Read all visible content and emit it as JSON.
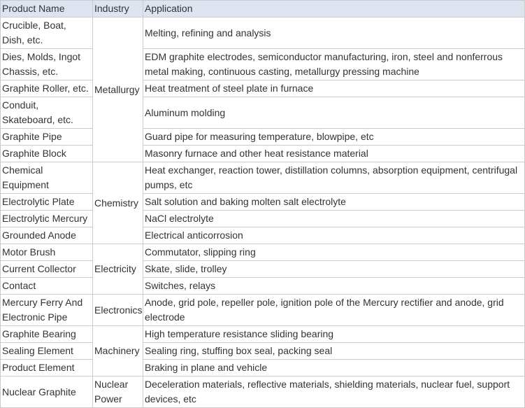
{
  "table": {
    "headers": [
      "Product Name",
      "Industry",
      "Application"
    ],
    "groups": [
      {
        "industry": "Metallurgy",
        "rows": [
          {
            "product": "Crucible, Boat, Dish, etc.",
            "application": "Melting, refining and analysis",
            "lines": 2
          },
          {
            "product": "Dies, Molds, Ingot Chassis, etc.",
            "application": "EDM graphite electrodes, semiconductor manufacturing, iron, steel and nonferrous metal making, continuous casting, metallurgy pressing machine",
            "lines": 2
          },
          {
            "product": "Graphite Roller, etc.",
            "application": "Heat treatment of steel plate in furnace",
            "lines": 1
          },
          {
            "product": "Conduit, Skateboard, etc.",
            "application": "Aluminum molding",
            "lines": 2
          },
          {
            "product": "Graphite Pipe",
            "application": "Guard pipe for measuring temperature, blowpipe, etc",
            "lines": 1
          },
          {
            "product": "Graphite Block",
            "application": "Masonry furnace and other heat resistance material",
            "lines": 1
          }
        ]
      },
      {
        "industry": "Chemistry",
        "rows": [
          {
            "product": "Chemical Equipment",
            "application": "Heat exchanger, reaction tower, distillation columns, absorption equipment, centrifugal pumps, etc",
            "lines": 2
          },
          {
            "product": "Electrolytic Plate",
            "application": "Salt solution and baking molten salt electrolyte",
            "lines": 1
          },
          {
            "product": "Electrolytic Mercury",
            "application": "NaCl electrolyte",
            "lines": 1
          },
          {
            "product": "Grounded Anode",
            "application": "Electrical anticorrosion",
            "lines": 1
          }
        ]
      },
      {
        "industry": "Electricity",
        "rows": [
          {
            "product": "Motor Brush",
            "application": "Commutator, slipping ring",
            "lines": 1
          },
          {
            "product": "Current Collector",
            "application": "Skate, slide, trolley",
            "lines": 1
          },
          {
            "product": "Contact",
            "application": "Switches, relays",
            "lines": 1
          }
        ]
      },
      {
        "industry": "Electronics",
        "rows": [
          {
            "product": "Mercury Ferry And Electronic Pipe",
            "application": "Anode, grid pole, repeller  pole, ignition pole of the Mercury rectifier and anode, grid electrode",
            "lines": 2
          }
        ]
      },
      {
        "industry": "Machinery",
        "rows": [
          {
            "product": "Graphite Bearing",
            "application": "High temperature resistance sliding bearing",
            "lines": 1
          },
          {
            "product": "Sealing Element",
            "application": "Sealing ring, stuffing box seal, packing seal",
            "lines": 1
          },
          {
            "product": "Product Element",
            "application": "Braking in plane and vehicle",
            "lines": 1
          }
        ]
      },
      {
        "industry": "Nuclear Power",
        "rows": [
          {
            "product": "Nuclear Graphite",
            "application": "Deceleration materials, reflective materials, shielding materials, nuclear fuel, support devices, etc",
            "lines": 2
          }
        ]
      }
    ]
  }
}
